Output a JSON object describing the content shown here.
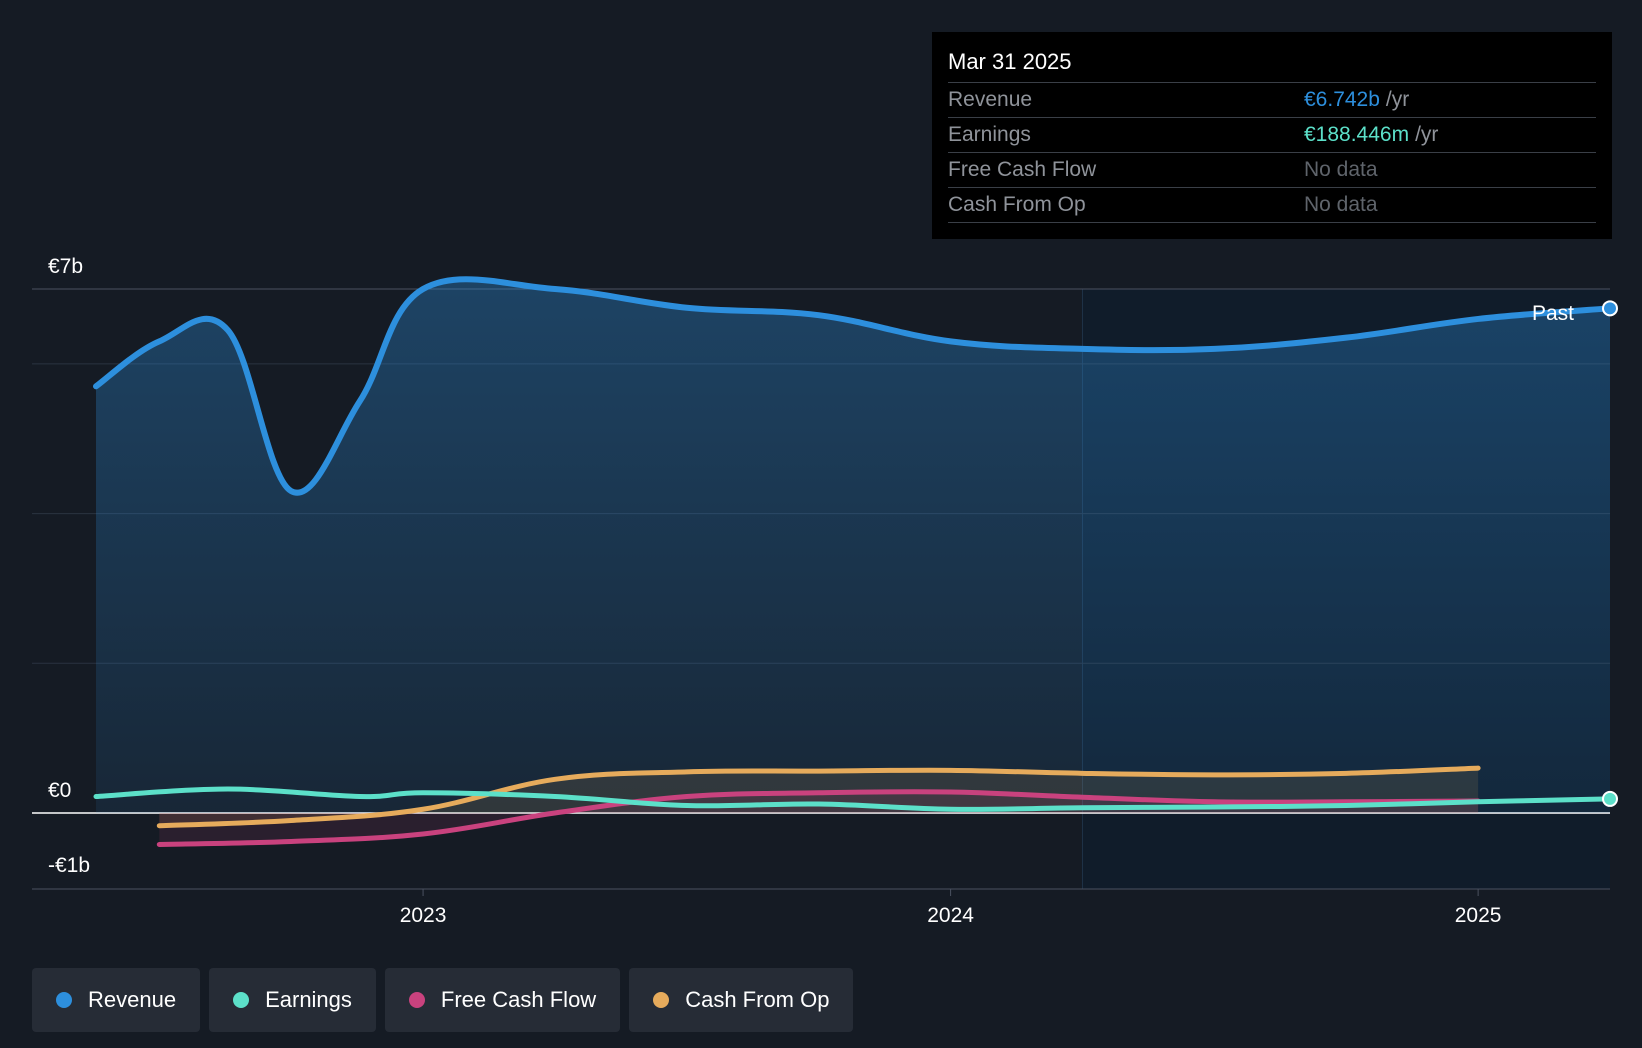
{
  "chart_data": {
    "type": "line",
    "x_range": [
      2022.38,
      2025.25
    ],
    "ylim": [
      -1,
      7
    ],
    "y_tick_labels": [
      {
        "value": 7,
        "label": "€7b"
      },
      {
        "value": 0,
        "label": "€0"
      },
      {
        "value": -1,
        "label": "-€1b"
      }
    ],
    "x_ticks": [
      {
        "value": 2023.0,
        "label": "2023"
      },
      {
        "value": 2024.0,
        "label": "2024"
      },
      {
        "value": 2025.0,
        "label": "2025"
      }
    ],
    "past_start": 2024.25,
    "past_label": "Past",
    "series": [
      {
        "name": "Revenue",
        "color": "#2d8fdd",
        "fill": true,
        "x": [
          2022.38,
          2022.5,
          2022.63,
          2022.75,
          2022.88,
          2023.0,
          2023.25,
          2023.5,
          2023.75,
          2024.0,
          2024.25,
          2024.5,
          2024.75,
          2025.0,
          2025.25
        ],
        "y": [
          5.7,
          6.3,
          6.45,
          4.3,
          5.5,
          7.0,
          7.0,
          6.75,
          6.65,
          6.3,
          6.2,
          6.2,
          6.35,
          6.6,
          6.742
        ]
      },
      {
        "name": "Earnings",
        "color": "#5ce0c9",
        "fill": false,
        "x": [
          2022.38,
          2022.63,
          2022.88,
          2023.0,
          2023.25,
          2023.5,
          2023.75,
          2024.0,
          2024.25,
          2024.5,
          2024.75,
          2025.0,
          2025.25
        ],
        "y": [
          0.22,
          0.32,
          0.22,
          0.27,
          0.22,
          0.1,
          0.12,
          0.05,
          0.07,
          0.08,
          0.1,
          0.15,
          0.188
        ]
      },
      {
        "name": "Free Cash Flow",
        "color": "#c9427e",
        "fill": true,
        "x": [
          2022.5,
          2022.75,
          2023.0,
          2023.25,
          2023.5,
          2023.75,
          2024.0,
          2024.25,
          2024.5,
          2024.75,
          2025.0
        ],
        "y": [
          -0.42,
          -0.38,
          -0.28,
          0.0,
          0.22,
          0.27,
          0.28,
          0.21,
          0.15,
          0.15,
          0.16
        ]
      },
      {
        "name": "Cash From Op",
        "color": "#e6ab5c",
        "fill": true,
        "x": [
          2022.5,
          2022.75,
          2023.0,
          2023.25,
          2023.5,
          2023.75,
          2024.0,
          2024.25,
          2024.5,
          2024.75,
          2025.0
        ],
        "y": [
          -0.17,
          -0.1,
          0.05,
          0.45,
          0.55,
          0.56,
          0.57,
          0.53,
          0.51,
          0.53,
          0.6
        ]
      }
    ]
  },
  "tooltip": {
    "date": "Mar 31 2025",
    "rows": [
      {
        "label": "Revenue",
        "value": "€6.742b",
        "unit": "/yr",
        "color": "#2d8fdd"
      },
      {
        "label": "Earnings",
        "value": "€188.446m",
        "unit": "/yr",
        "color": "#5ce0c9"
      },
      {
        "label": "Free Cash Flow",
        "value": "No data",
        "unit": ""
      },
      {
        "label": "Cash From Op",
        "value": "No data",
        "unit": ""
      }
    ]
  },
  "legend": [
    {
      "label": "Revenue",
      "color": "#2d8fdd"
    },
    {
      "label": "Earnings",
      "color": "#5ce0c9"
    },
    {
      "label": "Free Cash Flow",
      "color": "#c9427e"
    },
    {
      "label": "Cash From Op",
      "color": "#e6ab5c"
    }
  ]
}
